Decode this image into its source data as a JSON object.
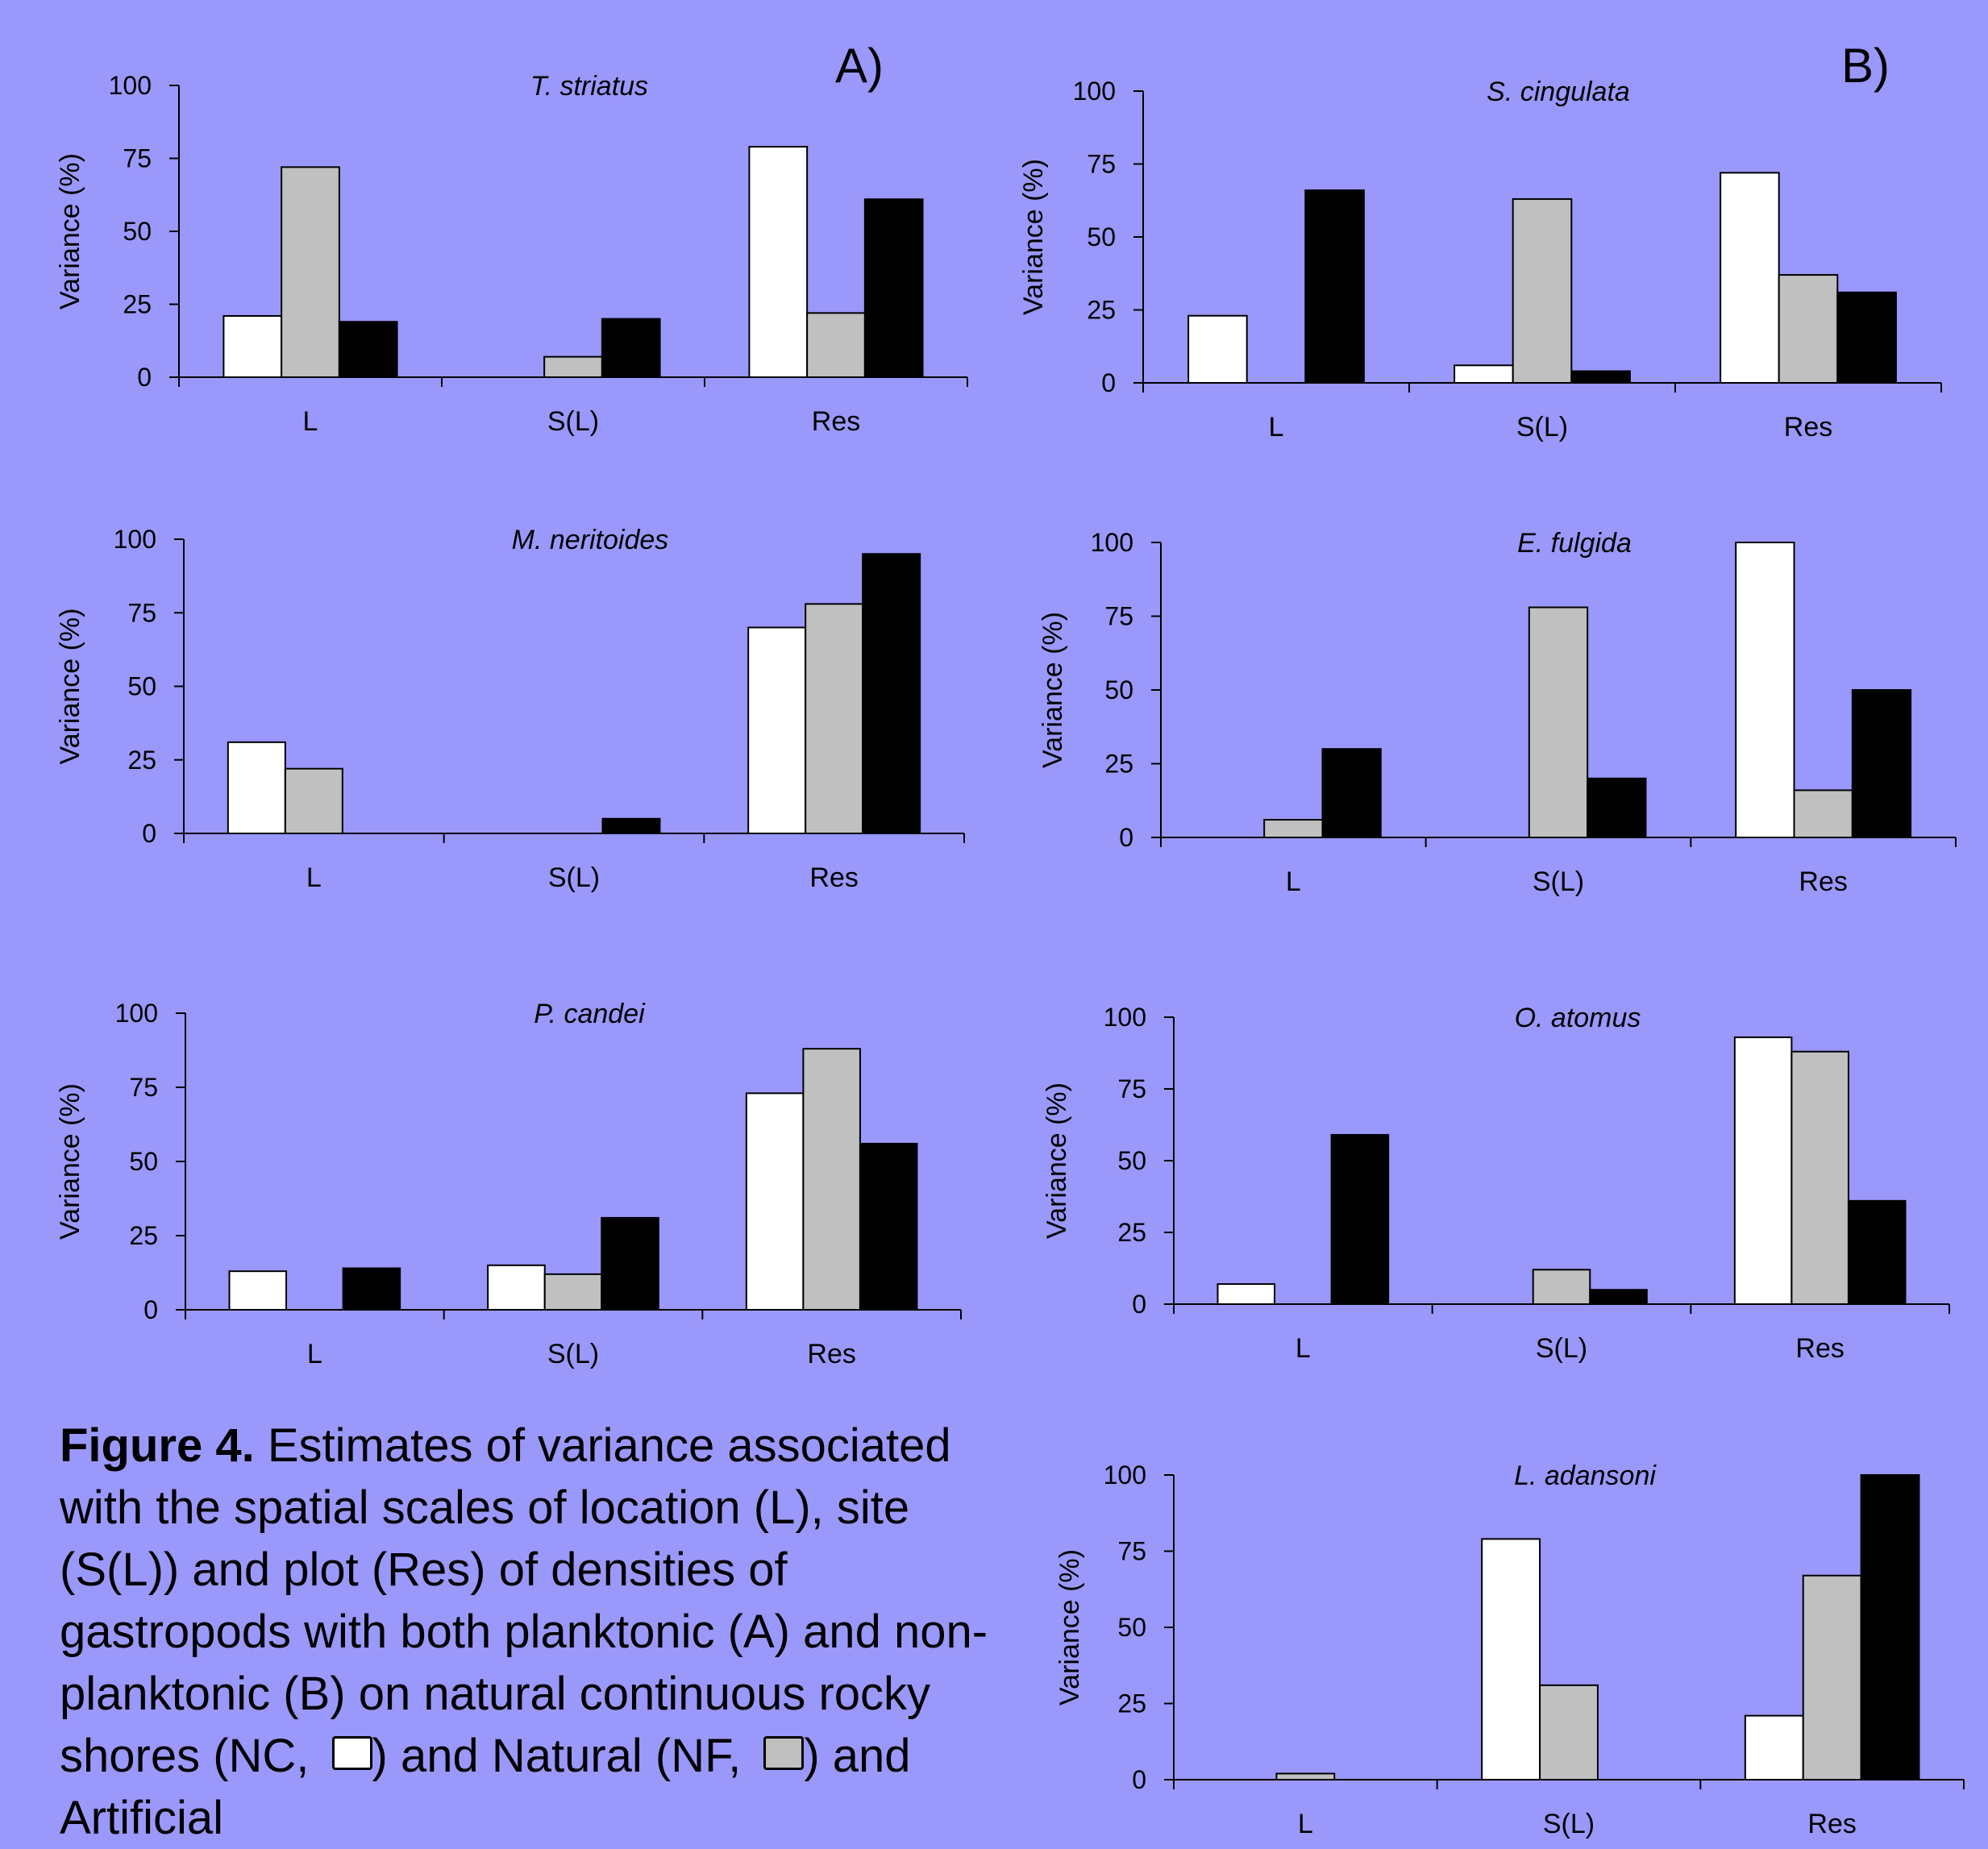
{
  "panel_labels": {
    "a": "A)",
    "b": "B)"
  },
  "colors": {
    "background": "#9b98fb",
    "NC": "#ffffff",
    "NF": "#c0c0c0",
    "AF": "#000000"
  },
  "caption": {
    "label": "Figure 4.",
    "text1": " Estimates of variance associated with the spatial scales of location (L), site (S(L)) and plot (Res) of densities of gastropods with both planktonic (A) and non-planktonic (B) on natural continuous rocky shores (NC, ",
    "text2": ") and Natural (NF, ",
    "text3": ") and Artificial"
  },
  "chart_data": [
    {
      "type": "bar",
      "title": "T. striatus",
      "ylabel": "Variance (%)",
      "ylim": [
        0,
        100
      ],
      "yticks": [
        0,
        25,
        50,
        75,
        100
      ],
      "categories": [
        "L",
        "S(L)",
        "Res"
      ],
      "series": [
        {
          "values": [
            21,
            0,
            79
          ]
        },
        {
          "values": [
            72,
            7,
            22
          ]
        },
        {
          "values": [
            19,
            20,
            61
          ]
        }
      ]
    },
    {
      "type": "bar",
      "title": "S. cingulata",
      "ylabel": "Variance (%)",
      "ylim": [
        0,
        100
      ],
      "yticks": [
        0,
        25,
        50,
        75,
        100
      ],
      "categories": [
        "L",
        "S(L)",
        "Res"
      ],
      "series": [
        {
          "values": [
            23,
            6,
            72
          ]
        },
        {
          "values": [
            0,
            63,
            37
          ]
        },
        {
          "values": [
            66,
            4,
            31
          ]
        }
      ]
    },
    {
      "type": "bar",
      "title": "M. neritoides",
      "ylabel": "Variance (%)",
      "ylim": [
        0,
        100
      ],
      "yticks": [
        0,
        25,
        50,
        75,
        100
      ],
      "categories": [
        "L",
        "S(L)",
        "Res"
      ],
      "series": [
        {
          "values": [
            31,
            0,
            70
          ]
        },
        {
          "values": [
            22,
            0,
            78
          ]
        },
        {
          "values": [
            0,
            5,
            95
          ]
        }
      ]
    },
    {
      "type": "bar",
      "title": "E. fulgida",
      "ylabel": "Variance (%)",
      "ylim": [
        0,
        100
      ],
      "yticks": [
        0,
        25,
        50,
        75,
        100
      ],
      "categories": [
        "L",
        "S(L)",
        "Res"
      ],
      "series": [
        {
          "values": [
            0,
            0,
            100
          ]
        },
        {
          "values": [
            6,
            78,
            16
          ]
        },
        {
          "values": [
            30,
            20,
            50
          ]
        }
      ]
    },
    {
      "type": "bar",
      "title": "P. candei",
      "ylabel": "Variance (%)",
      "ylim": [
        0,
        100
      ],
      "yticks": [
        0,
        25,
        50,
        75,
        100
      ],
      "categories": [
        "L",
        "S(L)",
        "Res"
      ],
      "series": [
        {
          "values": [
            13,
            15,
            73
          ]
        },
        {
          "values": [
            0,
            12,
            88
          ]
        },
        {
          "values": [
            14,
            31,
            56
          ]
        }
      ]
    },
    {
      "type": "bar",
      "title": "O. atomus",
      "ylabel": "Variance (%)",
      "ylim": [
        0,
        100
      ],
      "yticks": [
        0,
        25,
        50,
        75,
        100
      ],
      "categories": [
        "L",
        "S(L)",
        "Res"
      ],
      "series": [
        {
          "values": [
            7,
            0,
            93
          ]
        },
        {
          "values": [
            0,
            12,
            88
          ]
        },
        {
          "values": [
            59,
            5,
            36
          ]
        }
      ]
    },
    {
      "type": "bar",
      "title": "L. adansoni",
      "ylabel": "Variance (%)",
      "ylim": [
        0,
        100
      ],
      "yticks": [
        0,
        25,
        50,
        75,
        100
      ],
      "categories": [
        "L",
        "S(L)",
        "Res"
      ],
      "series": [
        {
          "values": [
            0,
            79,
            21
          ]
        },
        {
          "values": [
            2,
            31,
            67
          ]
        },
        {
          "values": [
            0,
            0,
            100
          ]
        }
      ]
    }
  ]
}
